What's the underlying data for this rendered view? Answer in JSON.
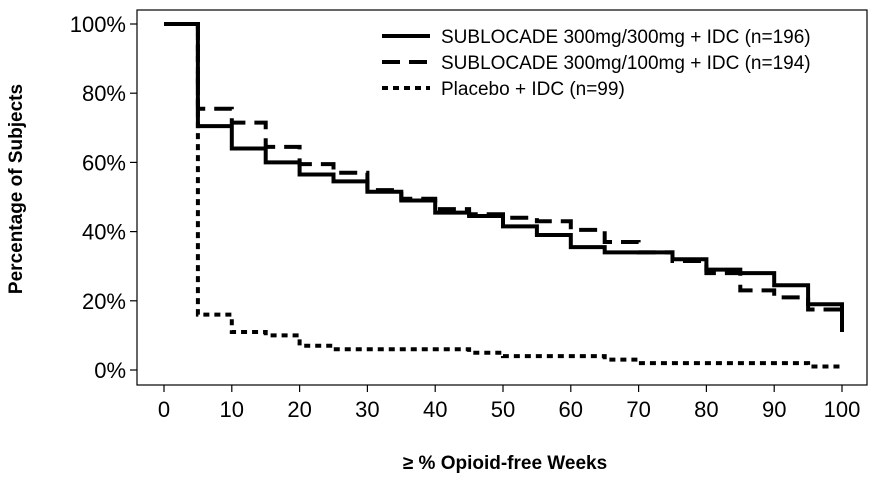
{
  "chart_data": {
    "type": "line",
    "subtype": "step",
    "xlabel": "≥ % Opioid-free Weeks",
    "ylabel": "Percentage of Subjects",
    "xlim": [
      0,
      100
    ],
    "ylim": [
      0,
      100
    ],
    "x_ticks": [
      0,
      10,
      20,
      30,
      40,
      50,
      60,
      70,
      80,
      90,
      100
    ],
    "y_ticks": [
      0,
      20,
      40,
      60,
      80,
      100
    ],
    "x_tick_labels": [
      "0",
      "10",
      "20",
      "30",
      "40",
      "50",
      "60",
      "70",
      "80",
      "90",
      "100"
    ],
    "y_tick_labels": [
      "0%",
      "20%",
      "40%",
      "60%",
      "80%",
      "100%"
    ],
    "grid": false,
    "legend_position": "top-right",
    "series": [
      {
        "name": "SUBLOCADE 300mg/300mg + IDC (n=196)",
        "line_style": "solid",
        "x": [
          0,
          5,
          10,
          15,
          20,
          25,
          30,
          35,
          40,
          45,
          50,
          55,
          60,
          65,
          70,
          75,
          80,
          85,
          90,
          95,
          100
        ],
        "y": [
          100,
          70.5,
          64,
          60,
          56.5,
          54.5,
          51.5,
          49,
          45.5,
          44.5,
          41.5,
          39,
          35.5,
          34,
          34,
          32,
          29,
          28,
          24.5,
          19,
          11
        ]
      },
      {
        "name": "SUBLOCADE 300mg/100mg + IDC (n=194)",
        "line_style": "dashed",
        "x": [
          0,
          5,
          10,
          15,
          20,
          25,
          30,
          35,
          40,
          45,
          50,
          55,
          60,
          65,
          70,
          75,
          80,
          85,
          90,
          95,
          100
        ],
        "y": [
          100,
          75.5,
          71.5,
          64.5,
          59.5,
          57,
          52,
          49.5,
          46.5,
          45,
          44,
          43,
          40.5,
          37,
          34,
          31.5,
          28,
          23,
          21,
          17.5,
          15
        ]
      },
      {
        "name": "Placebo + IDC (n=99)",
        "line_style": "dotted",
        "x": [
          0,
          5,
          10,
          15,
          20,
          25,
          30,
          35,
          40,
          45,
          50,
          55,
          60,
          65,
          70,
          75,
          80,
          85,
          90,
          95,
          100
        ],
        "y": [
          100,
          16,
          11,
          10,
          7,
          6,
          6,
          6,
          6,
          5,
          4,
          4,
          4,
          3,
          2,
          2,
          2,
          2,
          2,
          1,
          1
        ]
      }
    ]
  }
}
